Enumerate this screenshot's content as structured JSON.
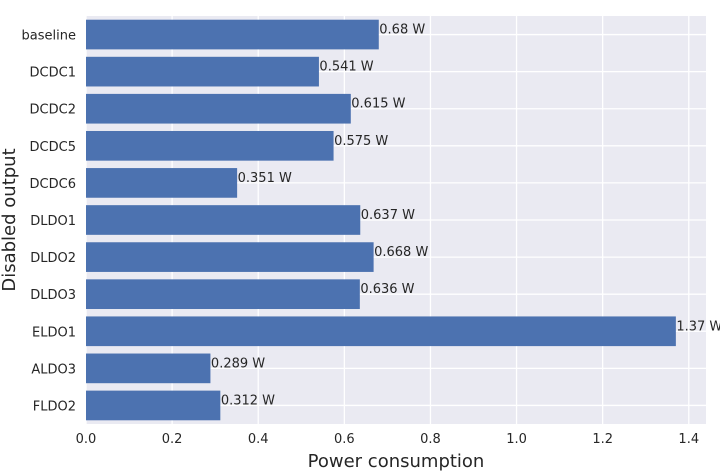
{
  "chart_data": {
    "type": "bar",
    "orientation": "horizontal",
    "categories": [
      "baseline",
      "DCDC1",
      "DCDC2",
      "DCDC5",
      "DCDC6",
      "DLDO1",
      "DLDO2",
      "DLDO3",
      "ELDO1",
      "ALDO3",
      "FLDO2"
    ],
    "values": [
      0.68,
      0.541,
      0.615,
      0.575,
      0.351,
      0.637,
      0.668,
      0.636,
      1.37,
      0.289,
      0.312
    ],
    "value_labels": [
      "0.68 W",
      "0.541 W",
      "0.615 W",
      "0.575 W",
      "0.351 W",
      "0.637 W",
      "0.668 W",
      "0.636 W",
      "1.37 W",
      "0.289 W",
      "0.312 W"
    ],
    "xlabel": "Power consumption",
    "ylabel": "Disabled output",
    "xlim": [
      0,
      1.44
    ],
    "xticks": [
      0.0,
      0.2,
      0.4,
      0.6,
      0.8,
      1.0,
      1.2,
      1.4
    ],
    "xtick_labels": [
      "0.0",
      "0.2",
      "0.4",
      "0.6",
      "0.8",
      "1.0",
      "1.2",
      "1.4"
    ],
    "grid": true,
    "colors": {
      "bar": "#4c72b0",
      "plot_bg": "#eaeaf2",
      "grid": "#ffffff"
    }
  }
}
